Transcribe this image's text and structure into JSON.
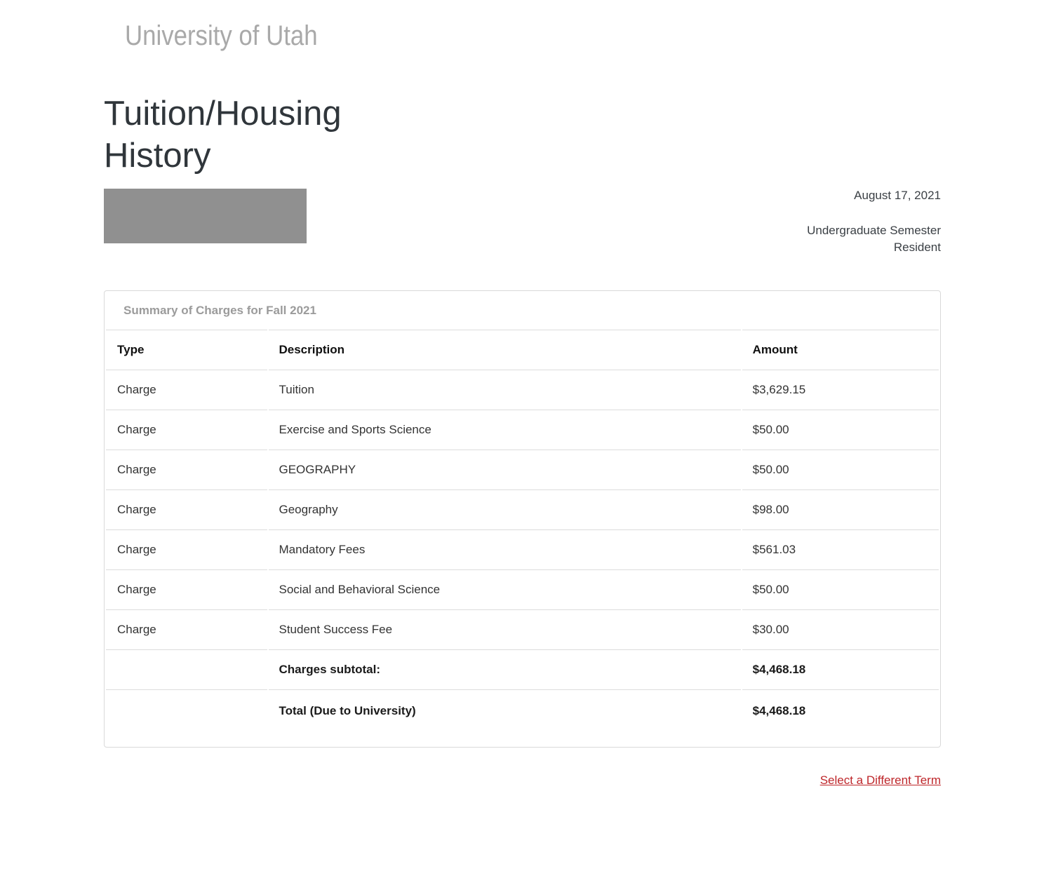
{
  "page": {
    "logo": "University of Utah",
    "title": "Tuition/Housing History",
    "date": "August 17, 2021",
    "semester_type": "Undergraduate Semester",
    "residency": "Resident"
  },
  "summary": {
    "header": "Summary of Charges for Fall 2021",
    "columns": [
      "Type",
      "Description",
      "Amount"
    ],
    "rows": [
      {
        "type": "Charge",
        "description": "Tuition",
        "amount": "$3,629.15"
      },
      {
        "type": "Charge",
        "description": "Exercise and Sports Science",
        "amount": "$50.00"
      },
      {
        "type": "Charge",
        "description": "GEOGRAPHY",
        "amount": "$50.00"
      },
      {
        "type": "Charge",
        "description": "Geography",
        "amount": "$98.00"
      },
      {
        "type": "Charge",
        "description": "Mandatory Fees",
        "amount": "$561.03"
      },
      {
        "type": "Charge",
        "description": "Social and Behavioral Science",
        "amount": "$50.00"
      },
      {
        "type": "Charge",
        "description": "Student Success Fee",
        "amount": "$30.00"
      }
    ],
    "subtotal_label": "Charges subtotal:",
    "subtotal_amount": "$4,468.18",
    "total_label": "Total (Due to University)",
    "total_amount": "$4,468.18"
  },
  "footer": {
    "link_label": "Select a Different Term"
  },
  "colors": {
    "link_red": "#be262a",
    "redaction_gray": "#909090",
    "muted_gray": "#9b9b9b",
    "heading_dark": "#30363b",
    "border_gray": "#dcdcdc"
  }
}
